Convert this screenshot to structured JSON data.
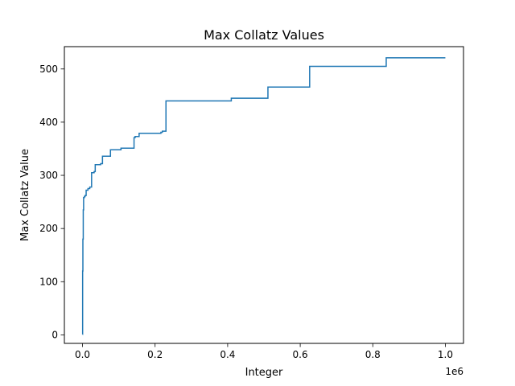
{
  "chart_data": {
    "type": "line",
    "title": "Max Collatz Values",
    "xlabel": "Integer",
    "ylabel": "Max Collatz Value",
    "x_offset_text": "1e6",
    "xlim": [
      -50000,
      1050000
    ],
    "ylim": [
      -16,
      542
    ],
    "x_ticks": [
      0,
      200000,
      400000,
      600000,
      800000,
      1000000
    ],
    "x_tick_labels": [
      "0.0",
      "0.2",
      "0.4",
      "0.6",
      "0.8",
      "1.0"
    ],
    "y_ticks": [
      0,
      100,
      200,
      300,
      400,
      500
    ],
    "y_tick_labels": [
      "0",
      "100",
      "200",
      "300",
      "400",
      "500"
    ],
    "grid": false,
    "legend": "none",
    "series": [
      {
        "color": "#1f77b4",
        "step": true,
        "x": [
          1,
          300,
          1000,
          2000,
          3000,
          5000,
          7000,
          10000,
          15000,
          20000,
          25000,
          32000,
          35000,
          50000,
          55000,
          77000,
          80000,
          106000,
          110000,
          142000,
          145000,
          156000,
          160000,
          216000,
          220000,
          230000,
          410000,
          415000,
          511000,
          520000,
          626000,
          630000,
          837000,
          840000,
          1000000
        ],
        "y": [
          1,
          120,
          180,
          235,
          258,
          260,
          262,
          272,
          275,
          278,
          305,
          307,
          320,
          322,
          336,
          348,
          348,
          351,
          351,
          371,
          373,
          379,
          379,
          381,
          383,
          440,
          445,
          445,
          466,
          466,
          505,
          505,
          521,
          521,
          521
        ]
      }
    ]
  }
}
